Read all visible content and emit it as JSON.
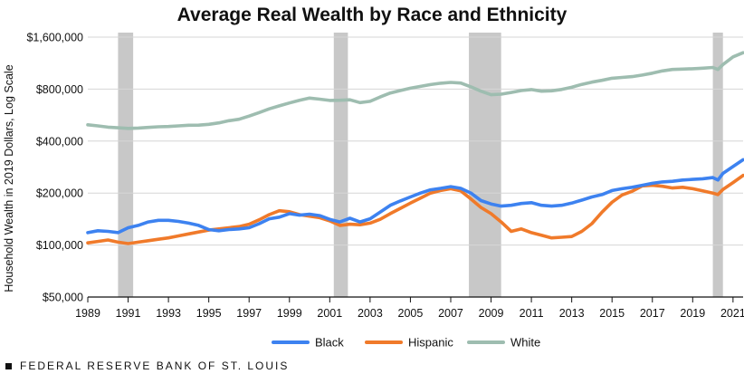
{
  "source_label": "FEDERAL RESERVE BANK OF ST. LOUIS",
  "chart_data": {
    "type": "line",
    "title": "Average Real Wealth by Race and Ethnicity",
    "xlabel": "",
    "ylabel": "Household Wealth in 2019 Dollars, Log Scale",
    "y_scale": "log",
    "ylim": [
      50000,
      1700000
    ],
    "xlim": [
      1989,
      2021.5
    ],
    "x_ticks": [
      1989,
      1991,
      1993,
      1995,
      1997,
      1999,
      2001,
      2003,
      2005,
      2007,
      2009,
      2011,
      2013,
      2015,
      2017,
      2019,
      2021
    ],
    "y_ticks": [
      {
        "value": 50000,
        "label": "$50,000"
      },
      {
        "value": 100000,
        "label": "$100,000"
      },
      {
        "value": 200000,
        "label": "$200,000"
      },
      {
        "value": 400000,
        "label": "$400,000"
      },
      {
        "value": 800000,
        "label": "$800,000"
      },
      {
        "value": 1600000,
        "label": "$1,600,000"
      }
    ],
    "recessions": [
      [
        1990.5,
        1991.25
      ],
      [
        2001.2,
        2001.9
      ],
      [
        2007.9,
        2009.5
      ],
      [
        2020.0,
        2020.5
      ]
    ],
    "series": [
      {
        "name": "Black",
        "color": "#3d82f0",
        "points": [
          [
            1989,
            118000
          ],
          [
            1989.5,
            121000
          ],
          [
            1990,
            120000
          ],
          [
            1990.5,
            118000
          ],
          [
            1991,
            126000
          ],
          [
            1991.5,
            130000
          ],
          [
            1992,
            136000
          ],
          [
            1992.5,
            139000
          ],
          [
            1993,
            139000
          ],
          [
            1993.5,
            137000
          ],
          [
            1994,
            134000
          ],
          [
            1994.5,
            130000
          ],
          [
            1995,
            123000
          ],
          [
            1995.5,
            121000
          ],
          [
            1996,
            123000
          ],
          [
            1996.5,
            124000
          ],
          [
            1997,
            126000
          ],
          [
            1997.5,
            133000
          ],
          [
            1998,
            142000
          ],
          [
            1998.5,
            145000
          ],
          [
            1999,
            152000
          ],
          [
            1999.5,
            149000
          ],
          [
            2000,
            151000
          ],
          [
            2000.5,
            148000
          ],
          [
            2001,
            141000
          ],
          [
            2001.5,
            136000
          ],
          [
            2002,
            143000
          ],
          [
            2002.5,
            136000
          ],
          [
            2003,
            142000
          ],
          [
            2003.5,
            155000
          ],
          [
            2004,
            170000
          ],
          [
            2004.5,
            180000
          ],
          [
            2005,
            190000
          ],
          [
            2005.5,
            200000
          ],
          [
            2006,
            209000
          ],
          [
            2006.5,
            213000
          ],
          [
            2007,
            218000
          ],
          [
            2007.5,
            213000
          ],
          [
            2008,
            200000
          ],
          [
            2008.5,
            181000
          ],
          [
            2009,
            173000
          ],
          [
            2009.5,
            168000
          ],
          [
            2010,
            170000
          ],
          [
            2010.5,
            174000
          ],
          [
            2011,
            176000
          ],
          [
            2011.5,
            170000
          ],
          [
            2012,
            168000
          ],
          [
            2012.5,
            170000
          ],
          [
            2013,
            175000
          ],
          [
            2013.5,
            182000
          ],
          [
            2014,
            190000
          ],
          [
            2014.5,
            196000
          ],
          [
            2015,
            207000
          ],
          [
            2015.5,
            212000
          ],
          [
            2016,
            216000
          ],
          [
            2016.5,
            222000
          ],
          [
            2017,
            228000
          ],
          [
            2017.5,
            232000
          ],
          [
            2018,
            234000
          ],
          [
            2018.5,
            238000
          ],
          [
            2019,
            240000
          ],
          [
            2019.5,
            242000
          ],
          [
            2020,
            246000
          ],
          [
            2020.25,
            238000
          ],
          [
            2020.5,
            260000
          ],
          [
            2021,
            285000
          ],
          [
            2021.5,
            312000
          ]
        ]
      },
      {
        "name": "Hispanic",
        "color": "#f07a2a",
        "points": [
          [
            1989,
            103000
          ],
          [
            1989.5,
            105000
          ],
          [
            1990,
            107000
          ],
          [
            1990.5,
            104000
          ],
          [
            1991,
            102000
          ],
          [
            1991.5,
            104000
          ],
          [
            1992,
            106000
          ],
          [
            1992.5,
            108000
          ],
          [
            1993,
            110000
          ],
          [
            1993.5,
            113000
          ],
          [
            1994,
            116000
          ],
          [
            1994.5,
            119000
          ],
          [
            1995,
            122000
          ],
          [
            1995.5,
            124000
          ],
          [
            1996,
            126000
          ],
          [
            1996.5,
            128000
          ],
          [
            1997,
            132000
          ],
          [
            1997.5,
            140000
          ],
          [
            1998,
            150000
          ],
          [
            1998.5,
            158000
          ],
          [
            1999,
            156000
          ],
          [
            1999.5,
            150000
          ],
          [
            2000,
            147000
          ],
          [
            2000.5,
            144000
          ],
          [
            2001,
            138000
          ],
          [
            2001.5,
            130000
          ],
          [
            2002,
            132000
          ],
          [
            2002.5,
            131000
          ],
          [
            2003,
            134000
          ],
          [
            2003.5,
            141000
          ],
          [
            2004,
            152000
          ],
          [
            2004.5,
            163000
          ],
          [
            2005,
            175000
          ],
          [
            2005.5,
            187000
          ],
          [
            2006,
            200000
          ],
          [
            2006.5,
            207000
          ],
          [
            2007,
            212000
          ],
          [
            2007.5,
            206000
          ],
          [
            2008,
            185000
          ],
          [
            2008.5,
            165000
          ],
          [
            2009,
            152000
          ],
          [
            2009.5,
            136000
          ],
          [
            2010,
            120000
          ],
          [
            2010.5,
            124000
          ],
          [
            2011,
            118000
          ],
          [
            2011.5,
            114000
          ],
          [
            2012,
            110000
          ],
          [
            2012.5,
            111000
          ],
          [
            2013,
            112000
          ],
          [
            2013.5,
            120000
          ],
          [
            2014,
            133000
          ],
          [
            2014.5,
            155000
          ],
          [
            2015,
            177000
          ],
          [
            2015.5,
            195000
          ],
          [
            2016,
            205000
          ],
          [
            2016.5,
            220000
          ],
          [
            2017,
            222000
          ],
          [
            2017.5,
            219000
          ],
          [
            2018,
            214000
          ],
          [
            2018.5,
            216000
          ],
          [
            2019,
            212000
          ],
          [
            2019.5,
            206000
          ],
          [
            2020,
            200000
          ],
          [
            2020.25,
            196000
          ],
          [
            2020.5,
            210000
          ],
          [
            2021,
            230000
          ],
          [
            2021.5,
            253000
          ]
        ]
      },
      {
        "name": "White",
        "color": "#9ebdb0",
        "points": [
          [
            1989,
            497000
          ],
          [
            1989.5,
            490000
          ],
          [
            1990,
            482000
          ],
          [
            1990.5,
            478000
          ],
          [
            1991,
            474000
          ],
          [
            1991.5,
            476000
          ],
          [
            1992,
            480000
          ],
          [
            1992.5,
            484000
          ],
          [
            1993,
            486000
          ],
          [
            1993.5,
            490000
          ],
          [
            1994,
            494000
          ],
          [
            1994.5,
            495000
          ],
          [
            1995,
            500000
          ],
          [
            1995.5,
            510000
          ],
          [
            1996,
            525000
          ],
          [
            1996.5,
            535000
          ],
          [
            1997,
            558000
          ],
          [
            1997.5,
            585000
          ],
          [
            1998,
            615000
          ],
          [
            1998.5,
            640000
          ],
          [
            1999,
            665000
          ],
          [
            1999.5,
            690000
          ],
          [
            2000,
            710000
          ],
          [
            2000.5,
            700000
          ],
          [
            2001,
            688000
          ],
          [
            2001.5,
            690000
          ],
          [
            2002,
            694000
          ],
          [
            2002.5,
            668000
          ],
          [
            2003,
            680000
          ],
          [
            2003.5,
            720000
          ],
          [
            2004,
            760000
          ],
          [
            2004.5,
            785000
          ],
          [
            2005,
            810000
          ],
          [
            2005.5,
            830000
          ],
          [
            2006,
            850000
          ],
          [
            2006.5,
            865000
          ],
          [
            2007,
            875000
          ],
          [
            2007.5,
            868000
          ],
          [
            2008,
            825000
          ],
          [
            2008.5,
            778000
          ],
          [
            2009,
            742000
          ],
          [
            2009.5,
            748000
          ],
          [
            2010,
            765000
          ],
          [
            2010.5,
            785000
          ],
          [
            2011,
            795000
          ],
          [
            2011.5,
            778000
          ],
          [
            2012,
            782000
          ],
          [
            2012.5,
            796000
          ],
          [
            2013,
            820000
          ],
          [
            2013.5,
            852000
          ],
          [
            2014,
            878000
          ],
          [
            2014.5,
            900000
          ],
          [
            2015,
            925000
          ],
          [
            2015.5,
            935000
          ],
          [
            2016,
            945000
          ],
          [
            2016.5,
            965000
          ],
          [
            2017,
            990000
          ],
          [
            2017.5,
            1020000
          ],
          [
            2018,
            1040000
          ],
          [
            2018.5,
            1045000
          ],
          [
            2019,
            1050000
          ],
          [
            2019.5,
            1058000
          ],
          [
            2020,
            1068000
          ],
          [
            2020.25,
            1040000
          ],
          [
            2020.5,
            1110000
          ],
          [
            2021,
            1230000
          ],
          [
            2021.5,
            1300000
          ]
        ]
      }
    ],
    "legend": [
      {
        "name": "Black",
        "color": "#3d82f0"
      },
      {
        "name": "Hispanic",
        "color": "#f07a2a"
      },
      {
        "name": "White",
        "color": "#9ebdb0"
      }
    ],
    "legend_position": "bottom-center"
  }
}
